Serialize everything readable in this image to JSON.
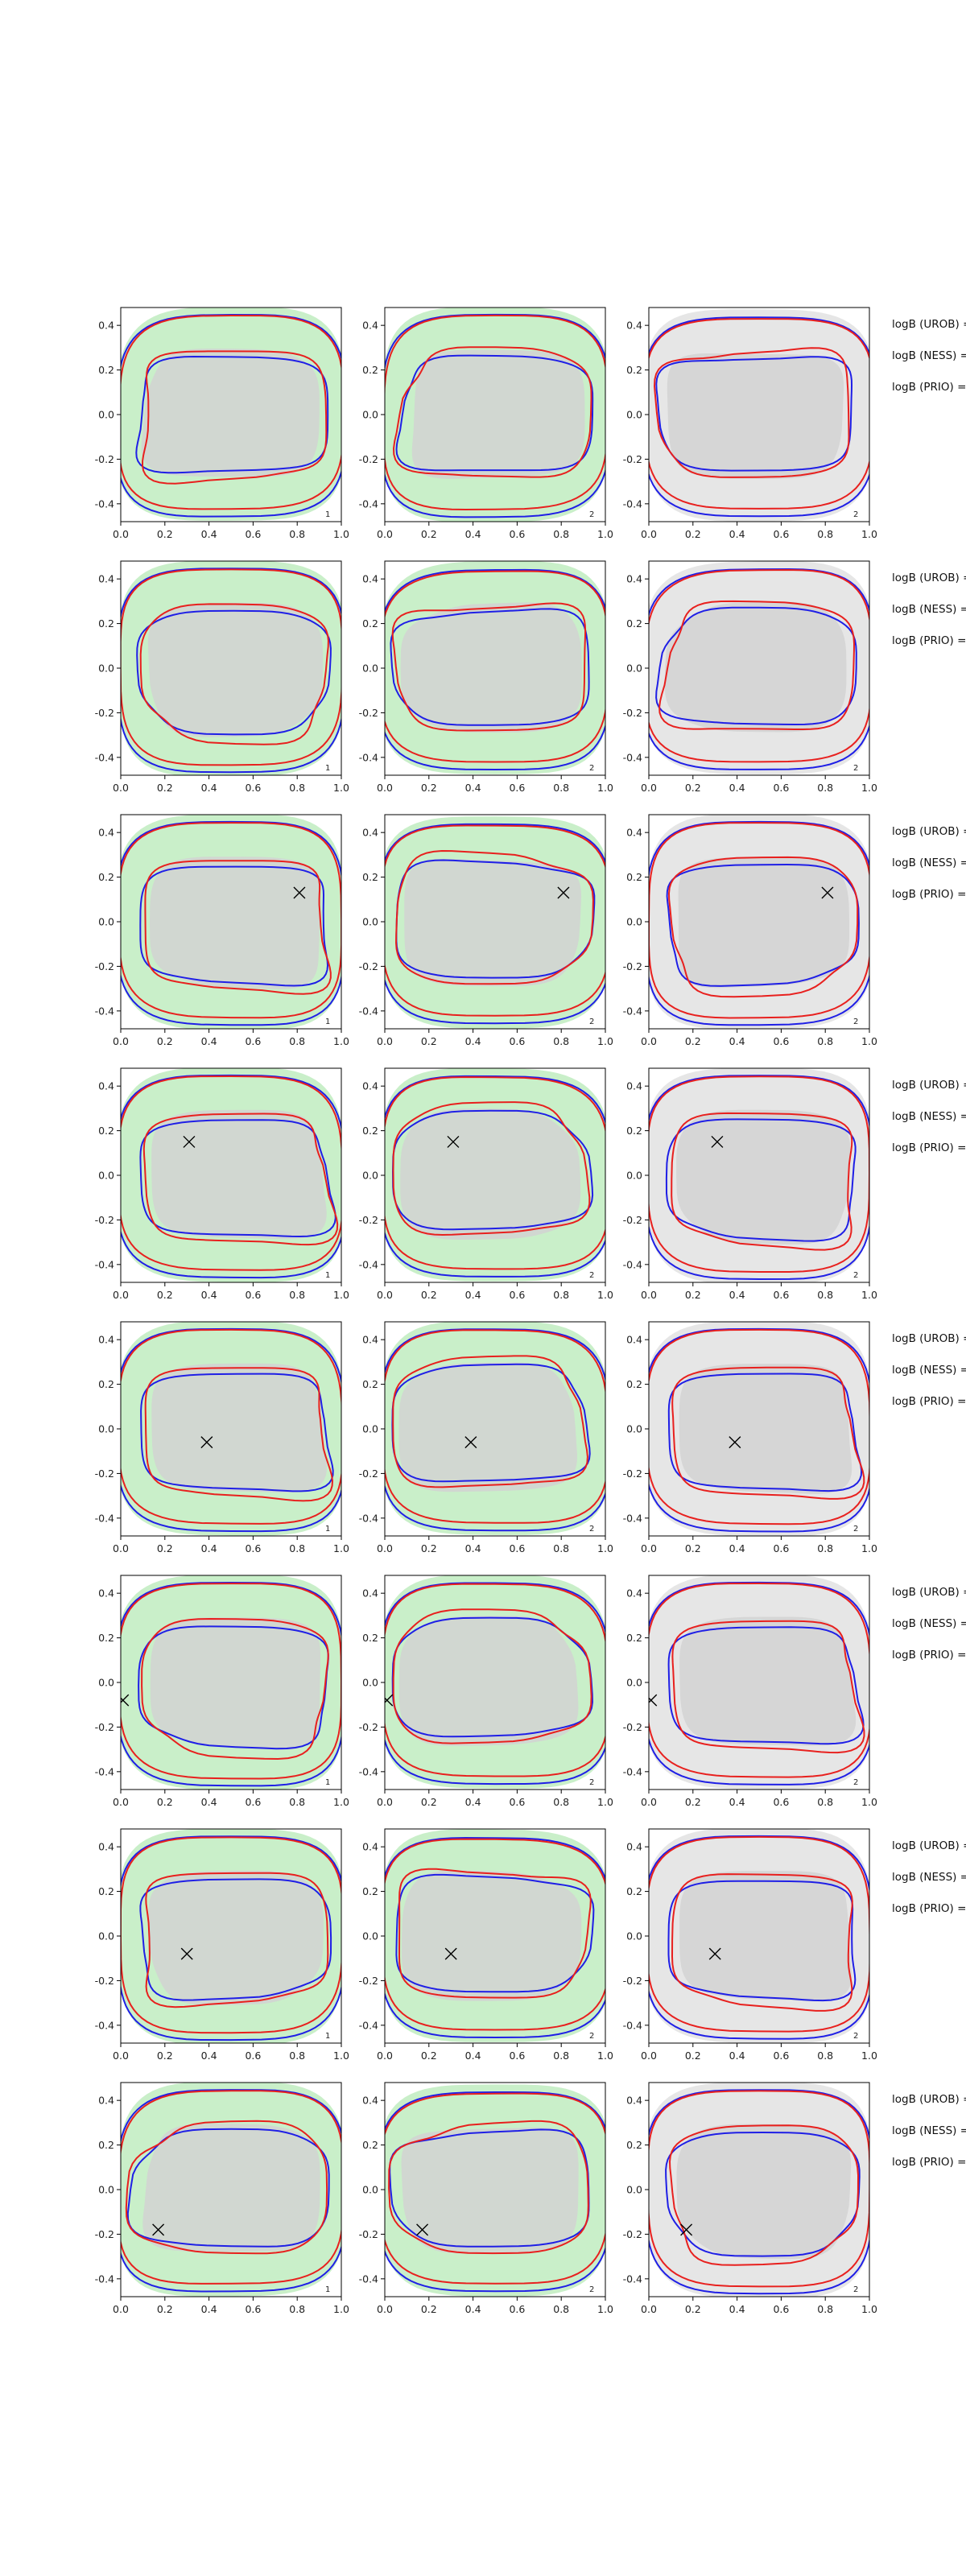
{
  "chart_data": {
    "type": "contour",
    "grid": {
      "rows": 8,
      "cols": 3
    },
    "xlim": [
      0.0,
      1.0
    ],
    "ylim": [
      -0.48,
      0.48
    ],
    "xticks": [
      "0.0",
      "0.2",
      "0.4",
      "0.6",
      "0.8",
      "1.0"
    ],
    "yticks": [
      "-0.4",
      "-0.2",
      "0.0",
      "0.2",
      "0.4"
    ],
    "panel_corner_labels": [
      "1",
      "2",
      "2"
    ],
    "legend_entries": [
      "logB (UROB) =",
      "logB (NESS) =",
      "logB (PRIO) ="
    ],
    "colors": {
      "red": "#e8201e",
      "blue": "#1f1fe6",
      "green_fill": "#c9efc9",
      "gray_fill": "#d2d2d2",
      "light_gray_fill": "#e6e6e6"
    },
    "markers": [
      {
        "row": 1,
        "x": null,
        "y": null
      },
      {
        "row": 2,
        "x": null,
        "y": null
      },
      {
        "row": 3,
        "x": 0.81,
        "y": 0.13
      },
      {
        "row": 4,
        "x": 0.31,
        "y": 0.15
      },
      {
        "row": 5,
        "x": 0.39,
        "y": -0.06
      },
      {
        "row": 6,
        "x": 0.01,
        "y": -0.08
      },
      {
        "row": 7,
        "x": 0.3,
        "y": -0.08
      },
      {
        "row": 8,
        "x": 0.17,
        "y": -0.18
      }
    ]
  }
}
